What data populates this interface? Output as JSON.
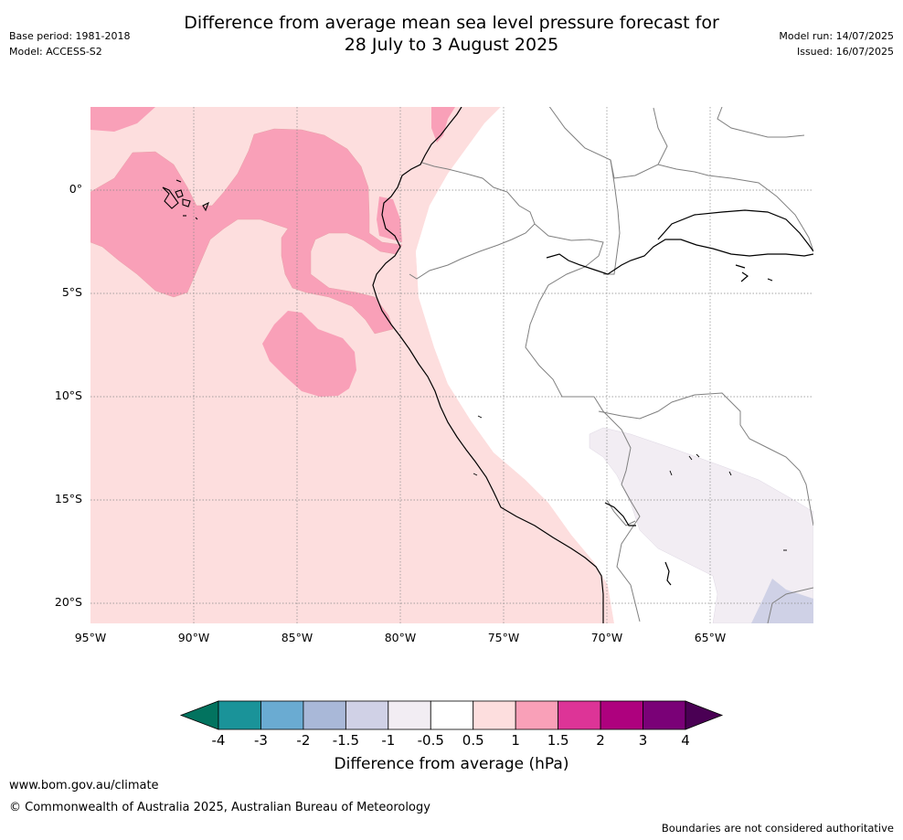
{
  "header": {
    "base_period": "Base period: 1981-2018",
    "model": "Model: ACCESS-S2",
    "model_run": "Model run: 14/07/2025",
    "issued": "Issued: 16/07/2025",
    "title_line1": "Difference from average mean sea level pressure forecast for",
    "title_line2": "28 July to 3 August 2025"
  },
  "map": {
    "lat_labels": [
      "0°",
      "5°S",
      "10°S",
      "15°S",
      "20°S"
    ],
    "lon_labels": [
      "95°W",
      "90°W",
      "85°W",
      "80°W",
      "75°W",
      "70°W",
      "65°W"
    ],
    "lon_range": [
      -95,
      -60
    ],
    "lat_range": [
      -21,
      4
    ],
    "colors": {
      "anomaly_0_5_to_1": "#fddede",
      "anomaly_1_to_1_5": "#f9a0b8",
      "anomaly_neg_1_to_neg_0_5": "#f2edf3",
      "anomaly_neg_1_5_to_neg_1": "#cfd1e6",
      "coastline": "#000000",
      "boundaries": "#808080",
      "grid": "#888888"
    }
  },
  "colorbar": {
    "ticks": [
      "-4",
      "-3",
      "-2",
      "-1.5",
      "-1",
      "-0.5",
      "0.5",
      "1",
      "1.5",
      "2",
      "3",
      "4"
    ],
    "colors": [
      "#1a9399",
      "#6aabd2",
      "#a9b8d8",
      "#d0d1e6",
      "#f2edf3",
      "#ffffff",
      "#fddede",
      "#f9a0b8",
      "#dd3497",
      "#ae017e",
      "#7a0177"
    ],
    "low_extend_color": "#02735f",
    "high_extend_color": "#4a0054",
    "label": "Difference from average (hPa)"
  },
  "footer": {
    "website": "www.bom.gov.au/climate",
    "copyright": "© Commonwealth of Australia 2025, Australian Bureau of Meteorology",
    "disclaimer": "Boundaries are not considered authoritative"
  }
}
